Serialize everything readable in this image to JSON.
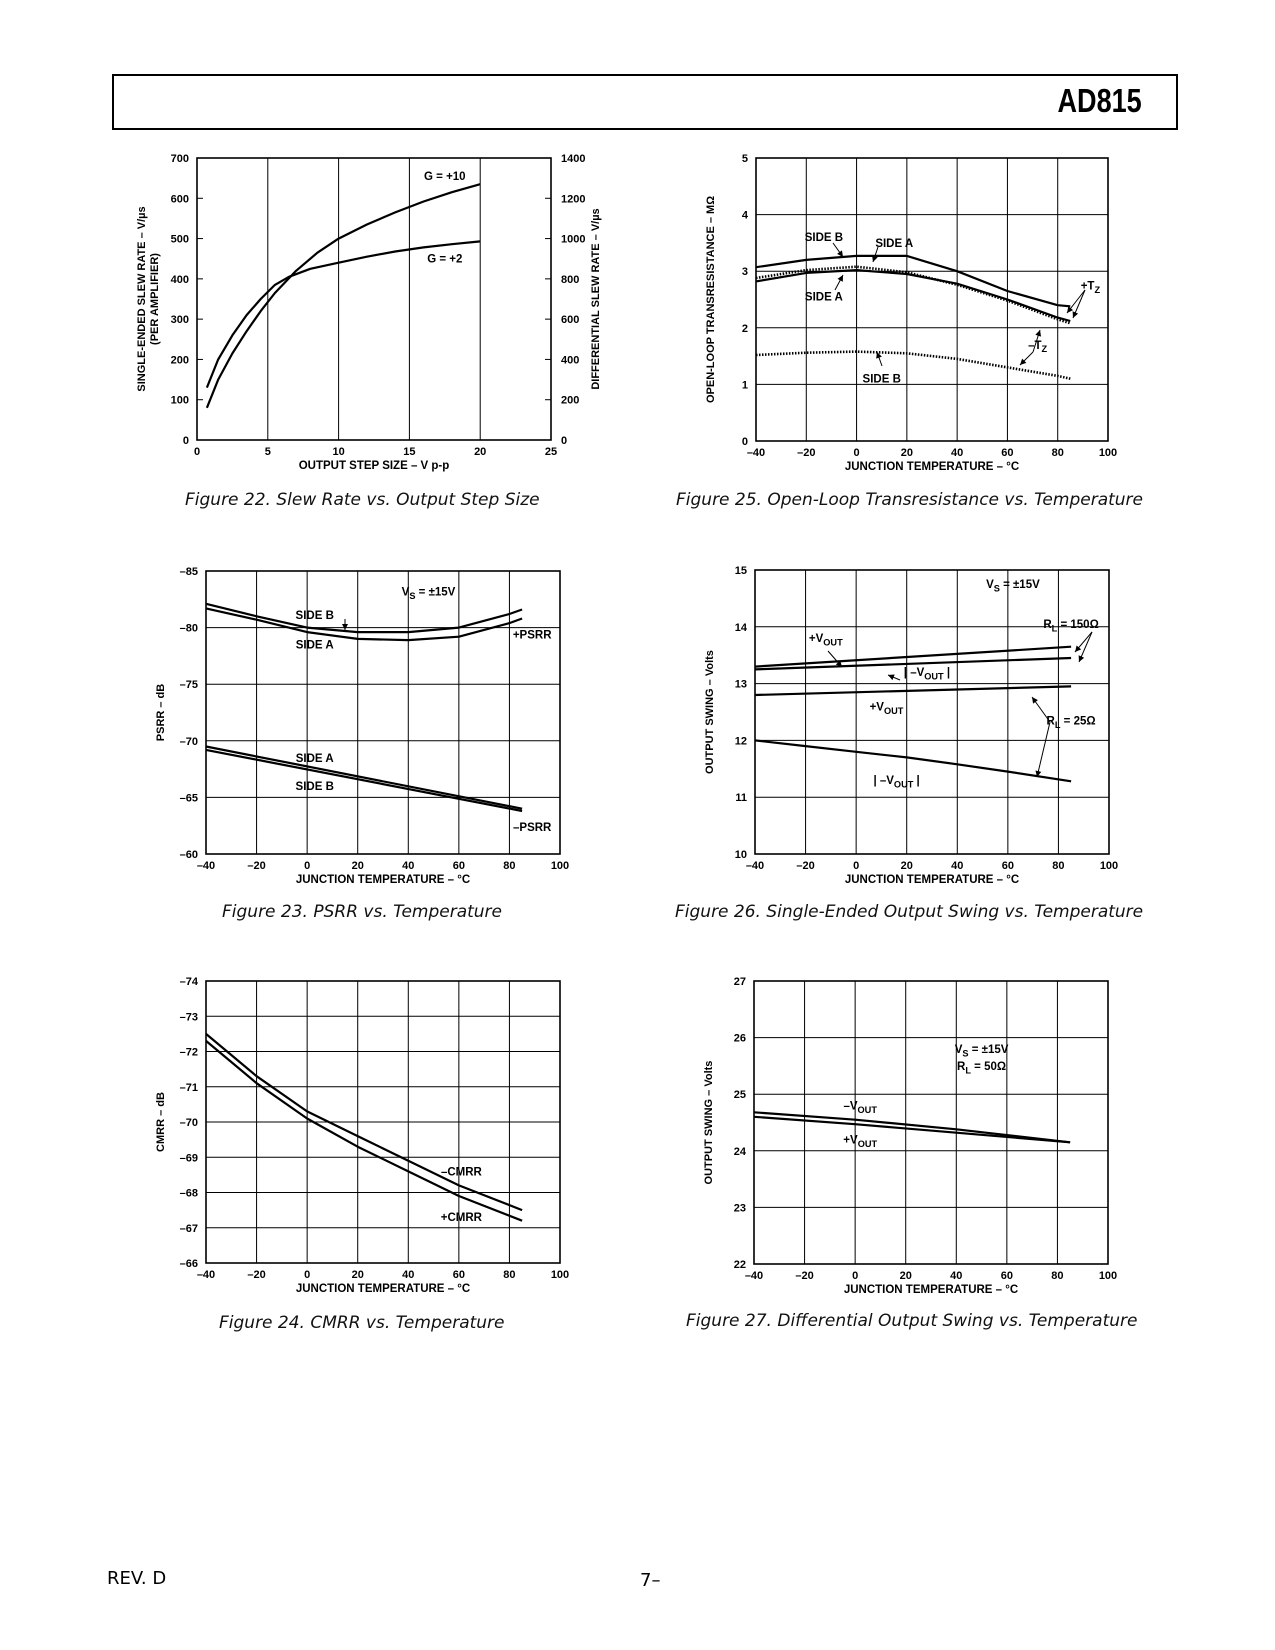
{
  "header": {
    "title": "AD815"
  },
  "footer": {
    "rev": "REV. D",
    "page": "7–"
  },
  "chart_data": [
    {
      "id": "fig22",
      "type": "line",
      "caption": "Figure 22.  Slew Rate vs. Output Step Size",
      "xlabel": "OUTPUT STEP SIZE – V p-p",
      "ylabel": "SINGLE-ENDED SLEW RATE – V/µs",
      "ylabel2": "(PER AMPLIFIER)",
      "y2label": "DIFFERENTIAL SLEW RATE – V/µs",
      "xlim": [
        0,
        25
      ],
      "ylim": [
        0,
        700
      ],
      "y2lim": [
        0,
        1400
      ],
      "xticks": [
        0,
        5,
        10,
        15,
        20,
        25
      ],
      "xtick_labels": [
        "0",
        "5",
        "10",
        "15",
        "20",
        "25"
      ],
      "yticks": [
        0,
        100,
        200,
        300,
        400,
        500,
        600,
        700
      ],
      "ytick_labels": [
        "0",
        "100",
        "200",
        "300",
        "400",
        "500",
        "600",
        "700"
      ],
      "y2tick_labels": [
        "0",
        "200",
        "400",
        "600",
        "800",
        "1000",
        "1200",
        "1400"
      ],
      "grid": "vertical",
      "series": [
        {
          "name": "G = +10",
          "x": [
            0.7,
            1.5,
            2.5,
            3.5,
            4.5,
            5.5,
            7,
            8.5,
            10,
            12,
            14,
            16,
            18,
            20
          ],
          "y": [
            80,
            150,
            215,
            270,
            320,
            365,
            420,
            465,
            500,
            535,
            565,
            592,
            615,
            635
          ]
        },
        {
          "name": "G = +2",
          "x": [
            0.7,
            1.5,
            2.5,
            3.5,
            4.5,
            5.5,
            6.5,
            8,
            10,
            12,
            14,
            16,
            18,
            20
          ],
          "y": [
            130,
            200,
            260,
            310,
            350,
            385,
            405,
            425,
            440,
            455,
            468,
            478,
            486,
            493
          ]
        }
      ],
      "annotations": [
        {
          "text": "G = +10",
          "x": 17.5,
          "y": 655
        },
        {
          "text": "G = +2",
          "x": 17.5,
          "y": 450
        }
      ]
    },
    {
      "id": "fig25",
      "type": "line",
      "caption": "Figure 25.  Open-Loop Transresistance vs. Temperature",
      "xlabel": "JUNCTION TEMPERATURE – °C",
      "ylabel": "OPEN-LOOP TRANSRESISTANCE – MΩ",
      "xlim": [
        -40,
        100
      ],
      "ylim": [
        0,
        5
      ],
      "xticks": [
        -40,
        -20,
        0,
        20,
        40,
        60,
        80,
        100
      ],
      "xtick_labels": [
        "–40",
        "–20",
        "0",
        "20",
        "40",
        "60",
        "80",
        "100"
      ],
      "yticks": [
        0,
        1,
        2,
        3,
        4,
        5
      ],
      "ytick_labels": [
        "0",
        "1",
        "2",
        "3",
        "4",
        "5"
      ],
      "grid": "both",
      "series": [
        {
          "name": "SIDE B +TZ",
          "style": "solid",
          "x": [
            -40,
            -20,
            0,
            20,
            40,
            60,
            80,
            85
          ],
          "y": [
            3.07,
            3.2,
            3.27,
            3.27,
            3.0,
            2.65,
            2.4,
            2.38
          ]
        },
        {
          "name": "SIDE A +TZ",
          "style": "solid",
          "x": [
            -40,
            -20,
            0,
            20,
            40,
            60,
            80,
            85
          ],
          "y": [
            2.82,
            2.97,
            3.02,
            2.95,
            2.78,
            2.5,
            2.18,
            2.12
          ]
        },
        {
          "name": "SIDE A –TZ",
          "style": "dotted",
          "x": [
            -40,
            -20,
            0,
            20,
            40,
            60,
            80,
            85
          ],
          "y": [
            2.88,
            3.02,
            3.08,
            2.98,
            2.76,
            2.48,
            2.15,
            2.08
          ]
        },
        {
          "name": "SIDE B –TZ",
          "style": "dotted",
          "x": [
            -40,
            -20,
            0,
            20,
            40,
            60,
            80,
            85
          ],
          "y": [
            1.52,
            1.56,
            1.58,
            1.55,
            1.45,
            1.3,
            1.15,
            1.1
          ]
        }
      ],
      "annotations": [
        {
          "text": "SIDE B",
          "x": -13,
          "y": 3.6
        },
        {
          "text": "SIDE A",
          "x": 15,
          "y": 3.5
        },
        {
          "text": "SIDE A",
          "x": -13,
          "y": 2.55
        },
        {
          "text": "SIDE B",
          "x": 10,
          "y": 1.1
        },
        {
          "text": "+TZ",
          "x": 93,
          "y": 2.75
        },
        {
          "text": "–TZ",
          "x": 72,
          "y": 1.7
        }
      ]
    },
    {
      "id": "fig23",
      "type": "line",
      "caption": "Figure 23.  PSRR vs. Temperature",
      "xlabel": "JUNCTION TEMPERATURE – °C",
      "ylabel": "PSRR – dB",
      "xlim": [
        -40,
        100
      ],
      "ylim": [
        -85,
        -60
      ],
      "xticks": [
        -40,
        -20,
        0,
        20,
        40,
        60,
        80,
        100
      ],
      "xtick_labels": [
        "–40",
        "–20",
        "0",
        "20",
        "40",
        "60",
        "80",
        "100"
      ],
      "yticks": [
        -85,
        -80,
        -75,
        -70,
        -65,
        -60
      ],
      "ytick_labels": [
        "–85",
        "–80",
        "–75",
        "–70",
        "–65",
        "–60"
      ],
      "grid": "both",
      "series": [
        {
          "name": "SIDE B +PSRR",
          "x": [
            -40,
            -20,
            0,
            20,
            40,
            60,
            80,
            85
          ],
          "y": [
            -82.1,
            -81.0,
            -80.0,
            -79.6,
            -79.6,
            -80.0,
            -81.2,
            -81.6
          ]
        },
        {
          "name": "SIDE A +PSRR",
          "x": [
            -40,
            -20,
            0,
            20,
            40,
            60,
            80,
            85
          ],
          "y": [
            -81.7,
            -80.7,
            -79.6,
            -79.0,
            -78.9,
            -79.2,
            -80.4,
            -80.8
          ]
        },
        {
          "name": "SIDE A –PSRR",
          "x": [
            -40,
            85
          ],
          "y": [
            -69.5,
            -64.0
          ]
        },
        {
          "name": "SIDE B –PSRR",
          "x": [
            -40,
            85
          ],
          "y": [
            -69.2,
            -63.8
          ]
        }
      ],
      "annotations": [
        {
          "text": "VS = ±15V",
          "x": 48,
          "y": -83.2
        },
        {
          "text": "SIDE B",
          "x": 3,
          "y": -81.1
        },
        {
          "text": "SIDE A",
          "x": 3,
          "y": -78.5
        },
        {
          "text": "+PSRR",
          "x": 89,
          "y": -79.4
        },
        {
          "text": "SIDE A",
          "x": 3,
          "y": -68.5
        },
        {
          "text": "SIDE B",
          "x": 3,
          "y": -66.0
        },
        {
          "text": "–PSRR",
          "x": 89,
          "y": -62.4
        }
      ]
    },
    {
      "id": "fig26",
      "type": "line",
      "caption": "Figure 26.  Single-Ended Output Swing vs. Temperature",
      "xlabel": "JUNCTION TEMPERATURE – °C",
      "ylabel": "OUTPUT SWING – Volts",
      "xlim": [
        -40,
        100
      ],
      "ylim": [
        10,
        15
      ],
      "xticks": [
        -40,
        -20,
        0,
        20,
        40,
        60,
        80,
        100
      ],
      "xtick_labels": [
        "–40",
        "–20",
        "0",
        "20",
        "40",
        "60",
        "80",
        "100"
      ],
      "yticks": [
        10,
        11,
        12,
        13,
        14,
        15
      ],
      "ytick_labels": [
        "10",
        "11",
        "12",
        "13",
        "14",
        "15"
      ],
      "grid": "both",
      "series": [
        {
          "name": "RL = 150Ω +VOUT",
          "x": [
            -40,
            85
          ],
          "y": [
            13.3,
            13.65
          ]
        },
        {
          "name": "RL = 150Ω |–VOUT|",
          "x": [
            -40,
            85
          ],
          "y": [
            13.25,
            13.45
          ]
        },
        {
          "name": "RL = 25Ω +VOUT",
          "x": [
            -40,
            85
          ],
          "y": [
            12.8,
            12.95
          ]
        },
        {
          "name": "RL = 25Ω |–VOUT|",
          "x": [
            -40,
            -20,
            0,
            20,
            40,
            60,
            85
          ],
          "y": [
            12.0,
            11.9,
            11.8,
            11.7,
            11.58,
            11.45,
            11.28
          ]
        }
      ],
      "annotations": [
        {
          "text": "VS = ±15V",
          "x": 62,
          "y": 14.75
        },
        {
          "text": "RL = 150Ω",
          "x": 85,
          "y": 14.05
        },
        {
          "text": "+VOUT",
          "x": -12,
          "y": 13.8
        },
        {
          "text": "| –VOUT |",
          "x": 28,
          "y": 13.2
        },
        {
          "text": "+VOUT",
          "x": 12,
          "y": 12.6
        },
        {
          "text": "RL = 25Ω",
          "x": 85,
          "y": 12.35
        },
        {
          "text": "| –VOUT |",
          "x": 16,
          "y": 11.3
        }
      ]
    },
    {
      "id": "fig24",
      "type": "line",
      "caption": "Figure 24.  CMRR vs. Temperature",
      "xlabel": "JUNCTION TEMPERATURE – °C",
      "ylabel": "CMRR – dB",
      "xlim": [
        -40,
        100
      ],
      "ylim": [
        -74,
        -66
      ],
      "xticks": [
        -40,
        -20,
        0,
        20,
        40,
        60,
        80,
        100
      ],
      "xtick_labels": [
        "–40",
        "–20",
        "0",
        "20",
        "40",
        "60",
        "80",
        "100"
      ],
      "yticks": [
        -74,
        -73,
        -72,
        -71,
        -70,
        -69,
        -68,
        -67,
        -66
      ],
      "ytick_labels": [
        "–74",
        "–73",
        "–72",
        "–71",
        "–70",
        "–69",
        "–68",
        "–67",
        "–66"
      ],
      "grid": "both",
      "series": [
        {
          "name": "–CMRR",
          "x": [
            -40,
            -20,
            0,
            20,
            40,
            60,
            85
          ],
          "y": [
            -72.5,
            -71.3,
            -70.3,
            -69.6,
            -68.9,
            -68.2,
            -67.5
          ]
        },
        {
          "name": "+CMRR",
          "x": [
            -40,
            -20,
            0,
            20,
            40,
            60,
            85
          ],
          "y": [
            -72.3,
            -71.1,
            -70.1,
            -69.3,
            -68.6,
            -67.9,
            -67.2
          ]
        }
      ],
      "annotations": [
        {
          "text": "–CMRR",
          "x": 61,
          "y": -68.6
        },
        {
          "text": "+CMRR",
          "x": 61,
          "y": -67.3
        }
      ]
    },
    {
      "id": "fig27",
      "type": "line",
      "caption": "Figure 27.  Differential Output Swing vs. Temperature",
      "xlabel": "JUNCTION TEMPERATURE – °C",
      "ylabel": "OUTPUT SWING – Volts",
      "xlim": [
        -40,
        100
      ],
      "ylim": [
        22,
        27
      ],
      "xticks": [
        -40,
        -20,
        0,
        20,
        40,
        60,
        80,
        100
      ],
      "xtick_labels": [
        "–40",
        "–20",
        "0",
        "20",
        "40",
        "60",
        "80",
        "100"
      ],
      "yticks": [
        22,
        23,
        24,
        25,
        26,
        27
      ],
      "ytick_labels": [
        "22",
        "23",
        "24",
        "25",
        "26",
        "27"
      ],
      "grid": "both",
      "series": [
        {
          "name": "–VOUT",
          "x": [
            -40,
            0,
            40,
            85
          ],
          "y": [
            24.68,
            24.55,
            24.38,
            24.15
          ]
        },
        {
          "name": "+VOUT",
          "x": [
            -40,
            0,
            40,
            85
          ],
          "y": [
            24.6,
            24.47,
            24.32,
            24.15
          ]
        }
      ],
      "annotations": [
        {
          "text": "VS = ±15V",
          "x": 50,
          "y": 25.8
        },
        {
          "text": "RL = 50Ω",
          "x": 50,
          "y": 25.5
        },
        {
          "text": "–VOUT",
          "x": 2,
          "y": 24.8
        },
        {
          "text": "+VOUT",
          "x": 2,
          "y": 24.2
        }
      ]
    }
  ]
}
